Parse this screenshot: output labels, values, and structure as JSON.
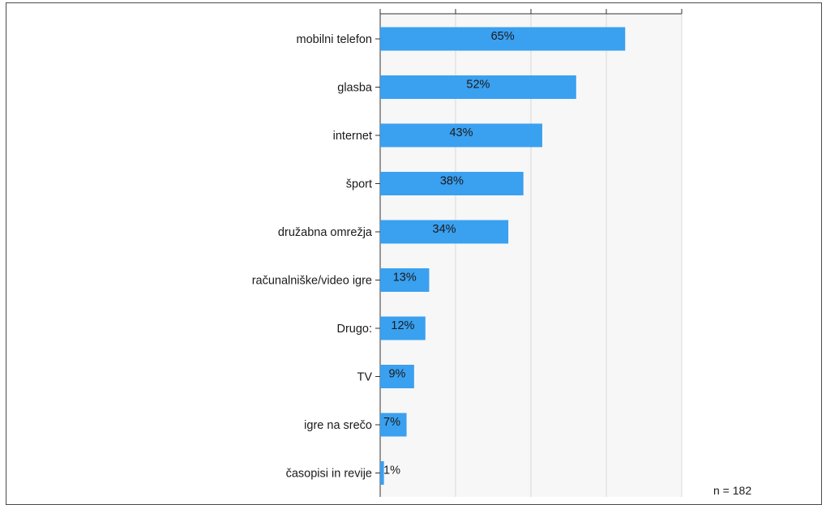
{
  "chart_data": {
    "type": "bar",
    "orientation": "horizontal",
    "categories": [
      "mobilni telefon",
      "glasba",
      "internet",
      "šport",
      "družabna omrežja",
      "računalniške/video igre",
      "Drugo:",
      "TV",
      "igre na srečo",
      "časopisi in revije"
    ],
    "values": [
      65,
      52,
      43,
      38,
      34,
      13,
      12,
      9,
      7,
      1
    ],
    "value_labels": [
      "65%",
      "52%",
      "43%",
      "38%",
      "34%",
      "13%",
      "12%",
      "9%",
      "7%",
      "1%"
    ],
    "xlim": [
      0,
      80
    ],
    "grid": true,
    "bar_color": "#3aa0f0",
    "note": "n = 182"
  }
}
